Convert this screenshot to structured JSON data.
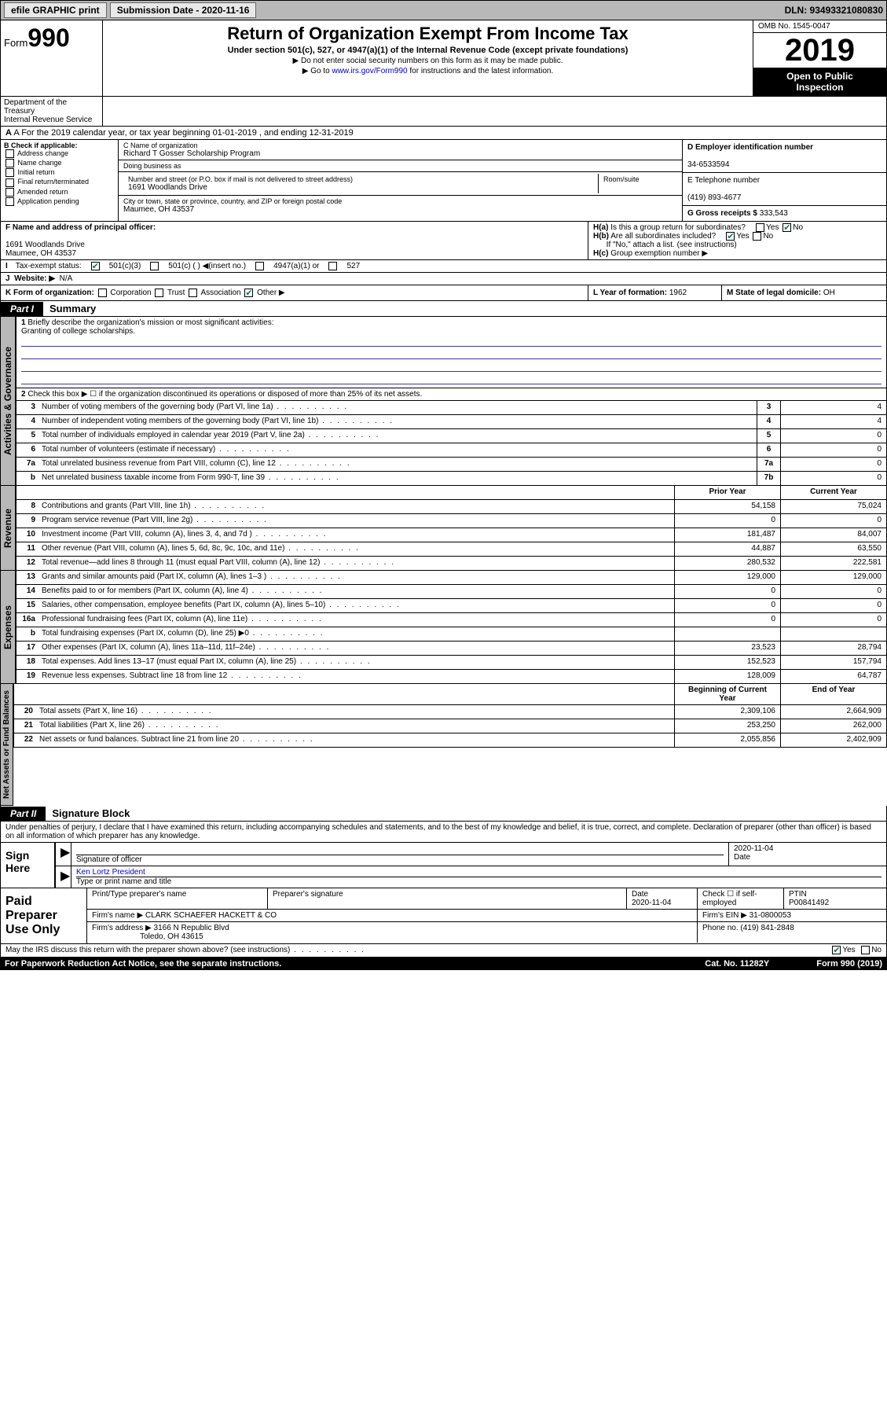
{
  "topbar": {
    "efile": "efile GRAPHIC print",
    "subdate_label": "Submission Date - 2020-11-16",
    "dln": "DLN: 93493321080830"
  },
  "form": {
    "prefix": "Form",
    "number": "990",
    "dept1": "Department of the Treasury",
    "dept2": "Internal Revenue Service"
  },
  "title": {
    "main": "Return of Organization Exempt From Income Tax",
    "sub": "Under section 501(c), 527, or 4947(a)(1) of the Internal Revenue Code (except private foundations)",
    "note1": "Do not enter social security numbers on this form as it may be made public.",
    "note2a": "Go to ",
    "note2link": "www.irs.gov/Form990",
    "note2b": " for instructions and the latest information."
  },
  "rightbox": {
    "omb": "OMB No. 1545-0047",
    "year": "2019",
    "inspect1": "Open to Public",
    "inspect2": "Inspection"
  },
  "a_line": "A For the 2019 calendar year, or tax year beginning 01-01-2019     , and ending 12-31-2019",
  "b": {
    "header": "B Check if applicable:",
    "items": [
      "Address change",
      "Name change",
      "Initial return",
      "Final return/terminated",
      "Amended return",
      "Application pending"
    ]
  },
  "c": {
    "label": "C Name of organization",
    "name": "Richard T Gosser Scholarship Program",
    "dba": "Doing business as",
    "addr_label": "Number and street (or P.O. box if mail is not delivered to street address)",
    "room": "Room/suite",
    "addr": "1691 Woodlands Drive",
    "city_label": "City or town, state or province, country, and ZIP or foreign postal code",
    "city": "Maumee, OH  43537"
  },
  "d": {
    "label": "D Employer identification number",
    "ein": "34-6533594"
  },
  "e": {
    "label": "E Telephone number",
    "phone": "(419) 893-4677"
  },
  "g": {
    "label": "G Gross receipts $",
    "val": "333,543"
  },
  "f": {
    "label": "F  Name and address of principal officer:",
    "addr1": "1691 Woodlands Drive",
    "addr2": "Maumee, OH  43537"
  },
  "h": {
    "a": "Is this a group return for subordinates?",
    "b": "Are all subordinates included?",
    "b_note": "If \"No,\" attach a list. (see instructions)",
    "c": "Group exemption number ▶"
  },
  "i": {
    "label": "Tax-exempt status:",
    "opt1": "501(c)(3)",
    "opt2": "501(c) (  ) ◀(insert no.)",
    "opt3": "4947(a)(1) or",
    "opt4": "527"
  },
  "j": {
    "label": "Website: ▶",
    "val": "N/A"
  },
  "k": {
    "label": "K Form of organization:",
    "opts": [
      "Corporation",
      "Trust",
      "Association",
      "Other ▶"
    ]
  },
  "l": {
    "label": "L Year of formation:",
    "val": "1962"
  },
  "m": {
    "label": "M State of legal domicile:",
    "val": "OH"
  },
  "part1": {
    "hdr": "Part I",
    "title": "Summary"
  },
  "line1": {
    "num": "1",
    "text": "Briefly describe the organization's mission or most significant activities:",
    "mission": "Granting of college scholarships."
  },
  "line2": {
    "num": "2",
    "text": "Check this box ▶ ☐  if the organization discontinued its operations or disposed of more than 25% of its net assets."
  },
  "vtabs": {
    "gov": "Activities & Governance",
    "rev": "Revenue",
    "exp": "Expenses",
    "net": "Net Assets or Fund Balances"
  },
  "rows_gov": [
    {
      "n": "3",
      "d": "Number of voting members of the governing body (Part VI, line 1a)",
      "b": "3",
      "v": "4"
    },
    {
      "n": "4",
      "d": "Number of independent voting members of the governing body (Part VI, line 1b)",
      "b": "4",
      "v": "4"
    },
    {
      "n": "5",
      "d": "Total number of individuals employed in calendar year 2019 (Part V, line 2a)",
      "b": "5",
      "v": "0"
    },
    {
      "n": "6",
      "d": "Total number of volunteers (estimate if necessary)",
      "b": "6",
      "v": "0"
    },
    {
      "n": "7a",
      "d": "Total unrelated business revenue from Part VIII, column (C), line 12",
      "b": "7a",
      "v": "0"
    },
    {
      "n": "b",
      "d": "Net unrelated business taxable income from Form 990-T, line 39",
      "b": "7b",
      "v": "0"
    }
  ],
  "col_hdrs": {
    "prior": "Prior Year",
    "current": "Current Year",
    "begin": "Beginning of Current Year",
    "end": "End of Year"
  },
  "rows_rev": [
    {
      "n": "8",
      "d": "Contributions and grants (Part VIII, line 1h)",
      "p": "54,158",
      "c": "75,024"
    },
    {
      "n": "9",
      "d": "Program service revenue (Part VIII, line 2g)",
      "p": "0",
      "c": "0"
    },
    {
      "n": "10",
      "d": "Investment income (Part VIII, column (A), lines 3, 4, and 7d )",
      "p": "181,487",
      "c": "84,007"
    },
    {
      "n": "11",
      "d": "Other revenue (Part VIII, column (A), lines 5, 6d, 8c, 9c, 10c, and 11e)",
      "p": "44,887",
      "c": "63,550"
    },
    {
      "n": "12",
      "d": "Total revenue—add lines 8 through 11 (must equal Part VIII, column (A), line 12)",
      "p": "280,532",
      "c": "222,581"
    }
  ],
  "rows_exp": [
    {
      "n": "13",
      "d": "Grants and similar amounts paid (Part IX, column (A), lines 1–3 )",
      "p": "129,000",
      "c": "129,000"
    },
    {
      "n": "14",
      "d": "Benefits paid to or for members (Part IX, column (A), line 4)",
      "p": "0",
      "c": "0"
    },
    {
      "n": "15",
      "d": "Salaries, other compensation, employee benefits (Part IX, column (A), lines 5–10)",
      "p": "0",
      "c": "0"
    },
    {
      "n": "16a",
      "d": "Professional fundraising fees (Part IX, column (A), line 11e)",
      "p": "0",
      "c": "0"
    },
    {
      "n": "b",
      "d": "Total fundraising expenses (Part IX, column (D), line 25) ▶0",
      "p": "",
      "c": ""
    },
    {
      "n": "17",
      "d": "Other expenses (Part IX, column (A), lines 11a–11d, 11f–24e)",
      "p": "23,523",
      "c": "28,794"
    },
    {
      "n": "18",
      "d": "Total expenses. Add lines 13–17 (must equal Part IX, column (A), line 25)",
      "p": "152,523",
      "c": "157,794"
    },
    {
      "n": "19",
      "d": "Revenue less expenses. Subtract line 18 from line 12",
      "p": "128,009",
      "c": "64,787"
    }
  ],
  "rows_net": [
    {
      "n": "20",
      "d": "Total assets (Part X, line 16)",
      "p": "2,309,106",
      "c": "2,664,909"
    },
    {
      "n": "21",
      "d": "Total liabilities (Part X, line 26)",
      "p": "253,250",
      "c": "262,000"
    },
    {
      "n": "22",
      "d": "Net assets or fund balances. Subtract line 21 from line 20",
      "p": "2,055,856",
      "c": "2,402,909"
    }
  ],
  "part2": {
    "hdr": "Part II",
    "title": "Signature Block"
  },
  "sig": {
    "intro": "Under penalties of perjury, I declare that I have examined this return, including accompanying schedules and statements, and to the best of my knowledge and belief, it is true, correct, and complete. Declaration of preparer (other than officer) is based on all information of which preparer has any knowledge.",
    "here": "Sign Here",
    "sig_label": "Signature of officer",
    "date_label": "Date",
    "date": "2020-11-04",
    "name": "Ken Lortz  President",
    "name_label": "Type or print name and title"
  },
  "prep": {
    "label": "Paid Preparer Use Only",
    "h1": "Print/Type preparer's name",
    "h2": "Preparer's signature",
    "h3": "Date",
    "h3v": "2020-11-04",
    "h4": "Check ☐ if self-employed",
    "h5": "PTIN",
    "h5v": "P00841492",
    "firm_label": "Firm's name    ▶",
    "firm": "CLARK SCHAEFER HACKETT & CO",
    "ein_label": "Firm's EIN ▶",
    "ein": "31-0800053",
    "addr_label": "Firm's address ▶",
    "addr1": "3166 N Republic Blvd",
    "addr2": "Toledo, OH  43615",
    "phone_label": "Phone no.",
    "phone": "(419) 841-2848"
  },
  "discuss": "May the IRS discuss this return with the preparer shown above? (see instructions)",
  "footer": {
    "pra": "For Paperwork Reduction Act Notice, see the separate instructions.",
    "cat": "Cat. No. 11282Y",
    "form": "Form 990 (2019)"
  },
  "yesno": {
    "yes": "Yes",
    "no": "No"
  }
}
